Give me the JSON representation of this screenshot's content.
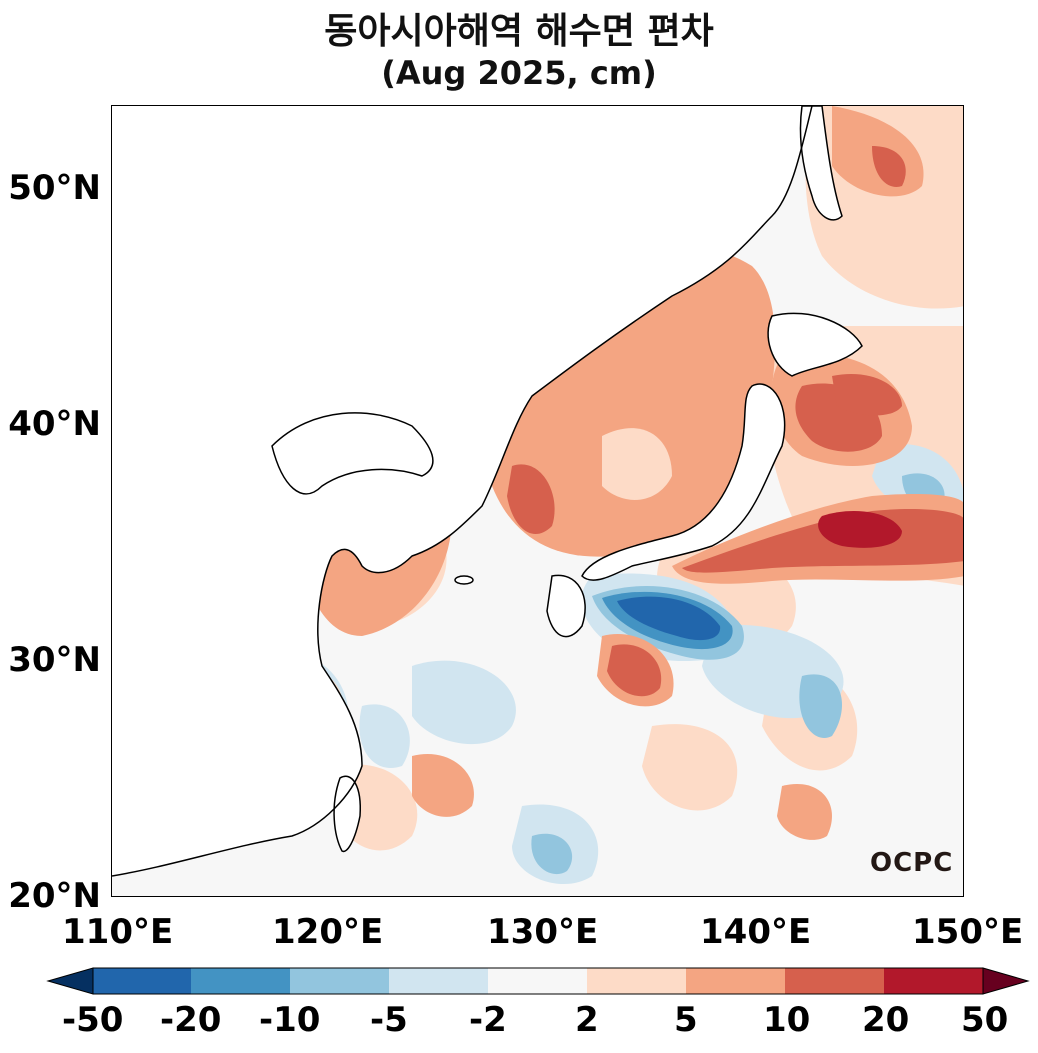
{
  "title": "동아시아해역 해수면 편차",
  "subtitle": "(Aug 2025, cm)",
  "lat_labels": [
    "50°N",
    "40°N",
    "30°N",
    "20°N"
  ],
  "lon_labels": [
    "110°E",
    "120°E",
    "130°E",
    "140°E",
    "150°E"
  ],
  "logo": "OCPC",
  "colorbar": {
    "labels": [
      "-50",
      "-20",
      "-10",
      "-5",
      "-2",
      "2",
      "5",
      "10",
      "20",
      "50"
    ],
    "colors": [
      "#053061",
      "#2166ac",
      "#4393c3",
      "#92c5de",
      "#d1e5f0",
      "#f7f7f7",
      "#fddbc7",
      "#f4a582",
      "#d6604d",
      "#b2182b",
      "#67001f"
    ]
  }
}
